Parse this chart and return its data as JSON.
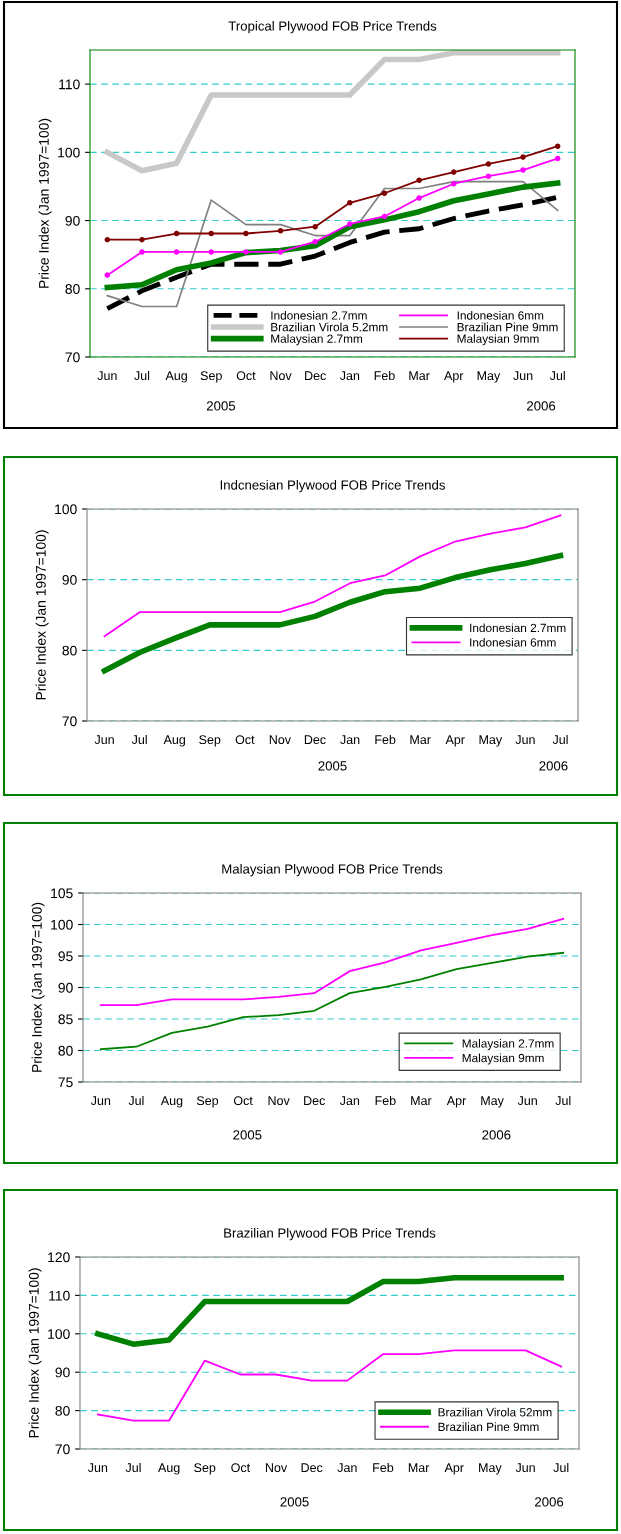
{
  "chart_data": [
    {
      "type": "line",
      "title": "Tropical Plywood FOB Price Trends",
      "ylabel": "Price Index (Jan 1997=100)",
      "categories": [
        "Jun",
        "Jul",
        "Aug",
        "Sep",
        "Oct",
        "Nov",
        "Dec",
        "Jan",
        "Feb",
        "Mar",
        "Apr",
        "May",
        "Jun",
        "Jul"
      ],
      "ylim": [
        70,
        115
      ],
      "yticks": [
        70,
        80,
        90,
        100,
        110
      ],
      "grid": "y",
      "legend": "bottom right",
      "annotations": [
        "2005",
        "2006"
      ],
      "series": [
        {
          "name": "Indonesian 2.7mm",
          "color": "#000000",
          "line_style": "dashed",
          "values": [
            77.1,
            79.7,
            81.7,
            83.6,
            83.6,
            83.6,
            84.8,
            86.8,
            88.3,
            88.8,
            90.3,
            91.4,
            92.3,
            93.4
          ]
        },
        {
          "name": "Indonesian 6mm",
          "color": "#ff00ff",
          "marker": "circle",
          "values": [
            82.0,
            85.4,
            85.4,
            85.4,
            85.4,
            85.4,
            86.9,
            89.5,
            90.6,
            93.3,
            95.4,
            96.5,
            97.4,
            99.1
          ]
        },
        {
          "name": "Brazilian Virola 5.2mm",
          "color": "#c8c8c8",
          "values": [
            100.0,
            97.3,
            98.4,
            108.4,
            108.4,
            108.4,
            108.4,
            108.4,
            113.6,
            113.6,
            114.6,
            114.6,
            114.6,
            114.6
          ]
        },
        {
          "name": "Brazilian Pine 9mm",
          "color": "#808080",
          "values": [
            79.0,
            77.4,
            77.4,
            93.0,
            89.4,
            89.4,
            87.8,
            87.8,
            94.7,
            94.7,
            95.7,
            95.7,
            95.7,
            91.5
          ]
        },
        {
          "name": "Malaysian 2.7mm",
          "color": "#008000",
          "values": [
            80.2,
            80.6,
            82.8,
            83.8,
            85.3,
            85.6,
            86.3,
            89.1,
            90.1,
            91.3,
            92.9,
            93.9,
            94.9,
            95.5
          ]
        },
        {
          "name": "Malaysian 9mm",
          "color": "#800000",
          "marker": "circle",
          "values": [
            87.2,
            87.2,
            88.1,
            88.1,
            88.1,
            88.5,
            89.1,
            92.6,
            94.0,
            95.9,
            97.1,
            98.3,
            99.3,
            100.9
          ]
        }
      ]
    },
    {
      "type": "line",
      "title": "Indcnesian Plywood FOB Price Trends",
      "ylabel": "Price Index (Jan 1997=100)",
      "categories": [
        "Jun",
        "Jul",
        "Aug",
        "Sep",
        "Oct",
        "Nov",
        "Dec",
        "Jan",
        "Feb",
        "Mar",
        "Apr",
        "May",
        "Jun",
        "Jul"
      ],
      "ylim": [
        70,
        100
      ],
      "yticks": [
        70,
        80,
        90,
        100
      ],
      "grid": "y",
      "legend": "right",
      "annotations": [
        "2005",
        "2006"
      ],
      "series": [
        {
          "name": "Indonesian 2.7mm",
          "color": "#008000",
          "values": [
            77.1,
            79.7,
            81.7,
            83.6,
            83.6,
            83.6,
            84.8,
            86.8,
            88.3,
            88.8,
            90.3,
            91.4,
            92.3,
            93.4
          ]
        },
        {
          "name": "Indonesian 6mm",
          "color": "#ff00ff",
          "values": [
            82.0,
            85.4,
            85.4,
            85.4,
            85.4,
            85.4,
            86.9,
            89.5,
            90.6,
            93.3,
            95.4,
            96.5,
            97.4,
            99.1
          ]
        }
      ]
    },
    {
      "type": "line",
      "title": "Malaysian Plywood FOB Price Trends",
      "ylabel": "Price Index (Jan 1997=100)",
      "categories": [
        "Jun",
        "Jul",
        "Aug",
        "Sep",
        "Oct",
        "Nov",
        "Dec",
        "Jan",
        "Feb",
        "Mar",
        "Apr",
        "May",
        "Jun",
        "Jul"
      ],
      "ylim": [
        75,
        105
      ],
      "yticks": [
        75,
        80,
        85,
        90,
        95,
        100,
        105
      ],
      "grid": "y",
      "legend": "bottom right",
      "annotations": [
        "2005",
        "2006"
      ],
      "series": [
        {
          "name": "Malaysian 2.7mm",
          "color": "#008000",
          "values": [
            80.2,
            80.6,
            82.8,
            83.8,
            85.3,
            85.6,
            86.3,
            89.1,
            90.1,
            91.3,
            92.9,
            93.9,
            94.9,
            95.5
          ]
        },
        {
          "name": "Malaysian 9mm",
          "color": "#ff00ff",
          "values": [
            87.2,
            87.2,
            88.1,
            88.1,
            88.1,
            88.5,
            89.1,
            92.6,
            94.0,
            95.9,
            97.1,
            98.3,
            99.3,
            100.9
          ]
        }
      ]
    },
    {
      "type": "line",
      "title": "Brazilian Plywood FOB Price Trends",
      "ylabel": "Price Index (Jan 1997=100)",
      "categories": [
        "Jun",
        "Jul",
        "Aug",
        "Sep",
        "Oct",
        "Nov",
        "Dec",
        "Jan",
        "Feb",
        "Mar",
        "Apr",
        "May",
        "Jun",
        "Jul"
      ],
      "ylim": [
        70,
        120
      ],
      "yticks": [
        70,
        80,
        90,
        100,
        110,
        120
      ],
      "grid": "y",
      "legend": "bottom right",
      "annotations": [
        "2005",
        "2006"
      ],
      "series": [
        {
          "name": "Brazilian Virola 52mm",
          "color": "#008000",
          "values": [
            100.0,
            97.3,
            98.4,
            108.4,
            108.4,
            108.4,
            108.4,
            108.4,
            113.6,
            113.6,
            114.6,
            114.6,
            114.6,
            114.6
          ]
        },
        {
          "name": "Brazilian Pine 9mm",
          "color": "#ff00ff",
          "values": [
            79.0,
            77.4,
            77.4,
            93.0,
            89.4,
            89.4,
            87.8,
            87.8,
            94.7,
            94.7,
            95.7,
            95.7,
            95.7,
            91.5
          ]
        }
      ]
    }
  ]
}
